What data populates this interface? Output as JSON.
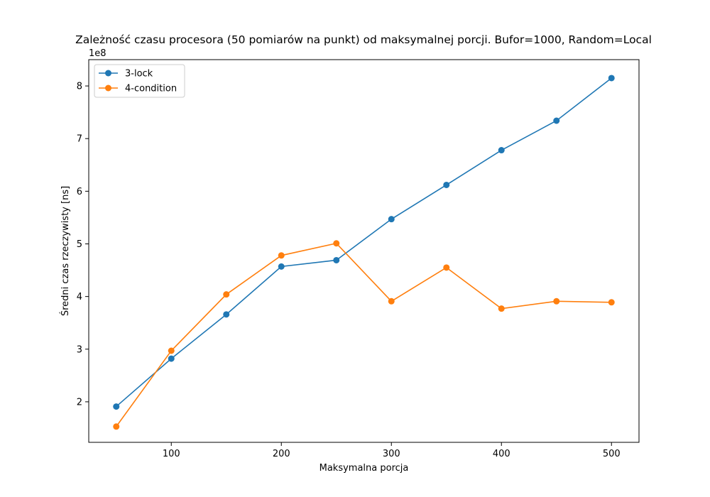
{
  "chart_data": {
    "type": "line",
    "title": "Zależność czasu procesora (50 pomiarów na punkt) od maksymalnej porcji. Bufor=1000, Random=Local",
    "xlabel": "Maksymalna porcja",
    "ylabel": "Średni czas rzeczywisty [ns]",
    "y_offset_label": "1e8",
    "x": [
      50,
      100,
      150,
      200,
      250,
      300,
      350,
      400,
      450,
      500
    ],
    "xlim": [
      25,
      525
    ],
    "ylim": [
      1.23,
      8.5
    ],
    "x_ticks": [
      100,
      200,
      300,
      400,
      500
    ],
    "y_ticks": [
      2,
      3,
      4,
      5,
      6,
      7,
      8
    ],
    "grid": false,
    "legend_position": "top-left",
    "series": [
      {
        "name": "3-lock",
        "color": "#1f77b4",
        "values": [
          1.91,
          2.82,
          3.66,
          4.57,
          4.69,
          5.47,
          6.12,
          6.78,
          7.34,
          8.15
        ]
      },
      {
        "name": "4-condition",
        "color": "#ff7f0e",
        "values": [
          1.53,
          2.97,
          4.04,
          4.78,
          5.01,
          3.91,
          4.55,
          3.77,
          3.91,
          3.89
        ]
      }
    ]
  }
}
